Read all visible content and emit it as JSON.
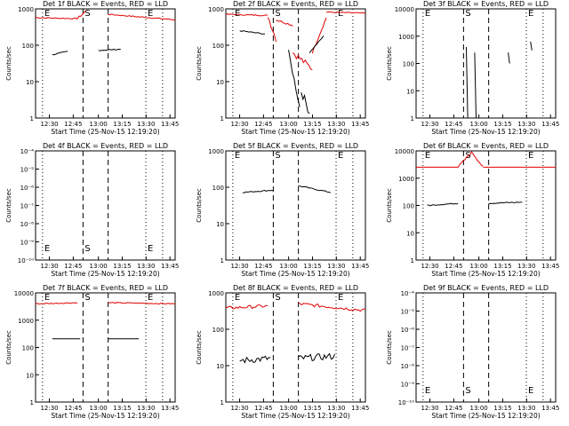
{
  "colors": {
    "events": "#000000",
    "lld": "#e00000",
    "axes": "#000000",
    "background": "#ffffff"
  },
  "xlabel": "Start Time (25-Nov-15 12:19:20)",
  "ylabel": "Counts/sec",
  "x_tick_labels": [
    "12:30",
    "12:45",
    "13:00",
    "13:15",
    "13:30",
    "13:45"
  ],
  "marker_labels": [
    "E",
    "S",
    "E"
  ],
  "chart_data": [
    {
      "title": "Det 1f BLACK = Events, RED = LLD",
      "type": "line",
      "yscale": "log",
      "ylim": [
        1,
        1000
      ],
      "y_tick_labels": [
        "1",
        "10",
        "100",
        "1000"
      ],
      "series": [
        {
          "name": "Events",
          "color": "#000000"
        },
        {
          "name": "LLD",
          "color": "#e00000"
        }
      ]
    },
    {
      "title": "Det 2f BLACK = Events, RED = LLD",
      "type": "line",
      "yscale": "log",
      "ylim": [
        1,
        1000
      ],
      "y_tick_labels": [
        "1",
        "10",
        "100",
        "1000"
      ],
      "series": [
        {
          "name": "Events",
          "color": "#000000"
        },
        {
          "name": "LLD",
          "color": "#e00000"
        }
      ]
    },
    {
      "title": "Det 3f BLACK = Events, RED = LLD",
      "type": "line",
      "yscale": "log",
      "ylim": [
        1,
        10000
      ],
      "y_tick_labels": [
        "1",
        "10",
        "100",
        "1000",
        "10000"
      ],
      "series": [
        {
          "name": "Events",
          "color": "#000000"
        }
      ]
    },
    {
      "title": "Det 4f BLACK = Events, RED = LLD",
      "type": "line",
      "yscale": "log",
      "ylim": [
        1e-10,
        0.0001
      ],
      "y_tick_labels": [
        "10⁻¹⁰",
        "10⁻⁹",
        "10⁻⁸",
        "10⁻⁷",
        "10⁻⁶",
        "10⁻⁵",
        "10⁻⁴"
      ],
      "series": []
    },
    {
      "title": "Det 5f BLACK = Events, RED = LLD",
      "type": "line",
      "yscale": "log",
      "ylim": [
        1,
        1000
      ],
      "y_tick_labels": [
        "1",
        "10",
        "100",
        "1000"
      ],
      "series": [
        {
          "name": "Events",
          "color": "#000000"
        }
      ]
    },
    {
      "title": "Det 6f BLACK = Events, RED = LLD",
      "type": "line",
      "yscale": "log",
      "ylim": [
        1,
        10000
      ],
      "y_tick_labels": [
        "1",
        "10",
        "100",
        "1000",
        "10000"
      ],
      "series": [
        {
          "name": "Events",
          "color": "#000000"
        },
        {
          "name": "LLD",
          "color": "#e00000"
        }
      ]
    },
    {
      "title": "Det 7f BLACK = Events, RED = LLD",
      "type": "line",
      "yscale": "log",
      "ylim": [
        1,
        10000
      ],
      "y_tick_labels": [
        "1",
        "10",
        "100",
        "1000",
        "10000"
      ],
      "series": [
        {
          "name": "Events",
          "color": "#000000"
        },
        {
          "name": "LLD",
          "color": "#e00000"
        }
      ]
    },
    {
      "title": "Det 8f BLACK = Events, RED = LLD",
      "type": "line",
      "yscale": "log",
      "ylim": [
        1,
        1000
      ],
      "y_tick_labels": [
        "1",
        "10",
        "100",
        "1000"
      ],
      "series": [
        {
          "name": "Events",
          "color": "#000000"
        },
        {
          "name": "LLD",
          "color": "#e00000"
        }
      ]
    },
    {
      "title": "Det 9f BLACK = Events, RED = LLD",
      "type": "line",
      "yscale": "log",
      "ylim": [
        1e-10,
        0.0001
      ],
      "y_tick_labels": [
        "10⁻¹⁰",
        "10⁻⁹",
        "10⁻⁸",
        "10⁻⁷",
        "10⁻⁶",
        "10⁻⁵",
        "10⁻⁴"
      ],
      "series": []
    }
  ]
}
